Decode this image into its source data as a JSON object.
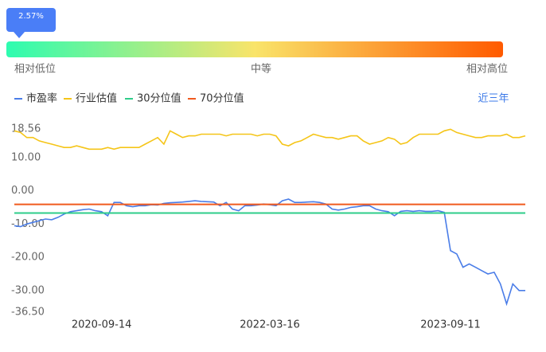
{
  "percentile_bar": {
    "value": 2.57,
    "label": "2.57%",
    "low_label": "相对低位",
    "mid_label": "中等",
    "high_label": "相对高位",
    "gradient_colors": [
      "#2dfcb0",
      "#f9e46a",
      "#ff5a00"
    ]
  },
  "range_link": "近三年",
  "chart_data": {
    "type": "line",
    "categories": [
      null,
      null,
      null,
      null,
      null,
      null,
      null,
      null,
      null,
      null,
      null,
      null,
      null,
      null,
      "2020-09-14",
      null,
      null,
      null,
      null,
      null,
      null,
      null,
      null,
      null,
      null,
      null,
      null,
      null,
      null,
      null,
      null,
      null,
      null,
      null,
      null,
      null,
      null,
      null,
      null,
      null,
      null,
      "2022-03-16",
      null,
      null,
      null,
      null,
      null,
      null,
      null,
      null,
      null,
      null,
      null,
      null,
      null,
      null,
      null,
      null,
      null,
      null,
      null,
      null,
      null,
      null,
      null,
      null,
      null,
      null,
      null,
      null,
      "2023-09-11",
      null,
      null,
      null,
      null,
      null,
      null,
      null,
      null,
      null,
      null,
      null,
      null
    ],
    "series": [
      {
        "name": "市盈率",
        "color": "#4a7de8",
        "values": [
          -10.5,
          -10.8,
          -10,
          -9.5,
          -9,
          -8.5,
          -8.7,
          -8,
          -7,
          -6.3,
          -6,
          -5.7,
          -5.5,
          -6,
          -6.3,
          -7.5,
          -3.5,
          -3.5,
          -4.5,
          -4.8,
          -4.5,
          -4.5,
          -4.2,
          -4.3,
          -3.8,
          -3.6,
          -3.5,
          -3.4,
          -3.2,
          -3,
          -3.2,
          -3.3,
          -3.4,
          -4.5,
          -3.5,
          -5.5,
          -6,
          -4.5,
          -4.5,
          -4.3,
          -4,
          -4.2,
          -4.5,
          -3,
          -2.5,
          -3.5,
          -3.5,
          -3.4,
          -3.3,
          -3.5,
          -4,
          -5.5,
          -5.8,
          -5.5,
          -5,
          -4.8,
          -4.5,
          -4.5,
          -5.5,
          -6,
          -6.3,
          -7.5,
          -6.2,
          -6,
          -6.2,
          -6,
          -6.2,
          -6.2,
          -6,
          -6.5,
          -18,
          -19,
          -23,
          -22,
          -23,
          -24,
          -25,
          -24.5,
          -28,
          -34,
          -28,
          -30,
          -30
        ]
      },
      {
        "name": "行业估值",
        "color": "#f5c518",
        "values": [
          18,
          17.5,
          16,
          16,
          15,
          14.5,
          14,
          13.5,
          13,
          13,
          13.5,
          13,
          12.5,
          12.5,
          12.5,
          13,
          12.5,
          13,
          13,
          13,
          13,
          14,
          15,
          16,
          14,
          18,
          17,
          16,
          16.5,
          16.5,
          17,
          17,
          17,
          17,
          16.5,
          17,
          17,
          17,
          17,
          16.5,
          17,
          17,
          16.5,
          14,
          13.5,
          14.5,
          15,
          16,
          17,
          16.5,
          16,
          16,
          15.5,
          16,
          16.5,
          16.5,
          15,
          14,
          14.5,
          15,
          16,
          15.5,
          14,
          14.5,
          16,
          17,
          17,
          17,
          17,
          18,
          18.5,
          17.5,
          17,
          16.5,
          16,
          16,
          16.5,
          16.5,
          16.5,
          17,
          16,
          16,
          16.5
        ]
      },
      {
        "name": "30分位值",
        "color": "#2ecc8a",
        "value": -6.7
      },
      {
        "name": "70分位值",
        "color": "#f05a1e",
        "value": -4.1
      }
    ],
    "ylim": [
      -36.5,
      18.56
    ],
    "yticks": [
      18.56,
      {
        "value": 10,
        "label": "10.00"
      },
      {
        "value": 0,
        "label": "0.00"
      },
      {
        "value": -10,
        "label": "-10.00"
      },
      {
        "value": -20,
        "label": "-20.00"
      },
      {
        "value": -30,
        "label": "-30.00"
      },
      {
        "value": -36.5,
        "label": "-36.50"
      }
    ]
  }
}
